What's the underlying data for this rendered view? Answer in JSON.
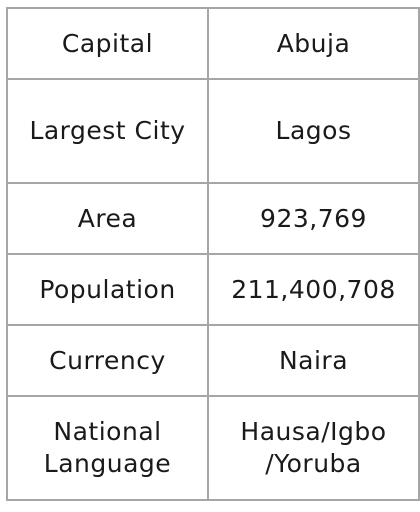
{
  "table": {
    "rows": [
      {
        "key": "Capital",
        "value": "Abuja"
      },
      {
        "key": "Largest City",
        "value": "Lagos"
      },
      {
        "key": "Area",
        "value": "923,769"
      },
      {
        "key": "Population",
        "value": "211,400,708"
      },
      {
        "key": "Currency",
        "value": "Naira"
      },
      {
        "key": "National Language",
        "value": "Hausa/Igbo /Yoruba"
      }
    ]
  }
}
